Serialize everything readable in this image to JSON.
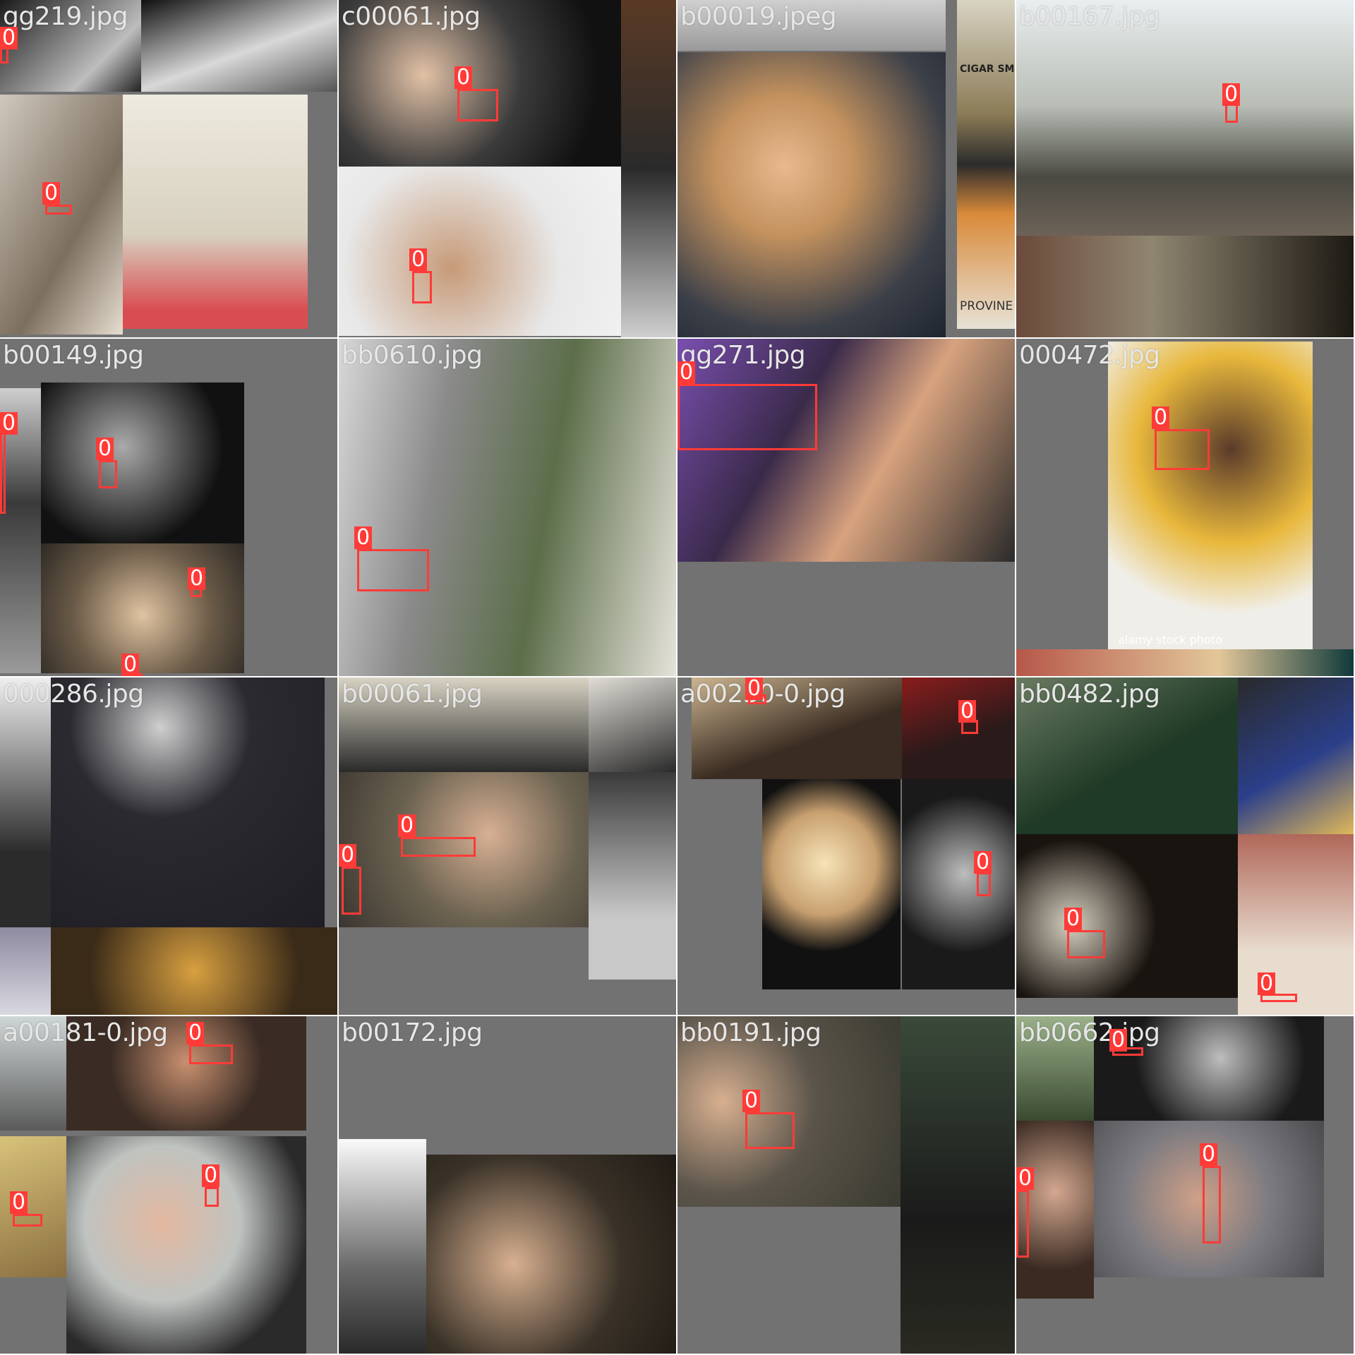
{
  "colors": {
    "background": "#727272",
    "box": "#ff3b38",
    "label_text": "#ffffff",
    "filename_text": "#e6e6e6"
  },
  "tiles": [
    {
      "filename": "gg219.jpg",
      "boxes": [
        {
          "cls": "0"
        },
        {
          "cls": "0"
        }
      ]
    },
    {
      "filename": "c00061.jpg",
      "boxes": [
        {
          "cls": "0"
        },
        {
          "cls": "0"
        }
      ]
    },
    {
      "filename": "b00019.jpeg",
      "poster_top": "CIGAR SMOK",
      "poster_bottom": "PROVINE - H",
      "boxes": []
    },
    {
      "filename": "b00167.jpg",
      "boxes": [
        {
          "cls": "0"
        }
      ]
    },
    {
      "filename": "b00149.jpg",
      "boxes": [
        {
          "cls": "0"
        },
        {
          "cls": "0"
        },
        {
          "cls": "0"
        },
        {
          "cls": "0"
        }
      ]
    },
    {
      "filename": "bb0610.jpg",
      "boxes": [
        {
          "cls": "0"
        }
      ]
    },
    {
      "filename": "gg271.jpg",
      "boxes": [
        {
          "cls": "0"
        }
      ]
    },
    {
      "filename": "000472.jpg",
      "watermark": "alamy stock photo",
      "boxes": [
        {
          "cls": "0"
        }
      ]
    },
    {
      "filename": "000286.jpg",
      "boxes": []
    },
    {
      "filename": "b00061.jpg",
      "boxes": [
        {
          "cls": "0"
        },
        {
          "cls": "0"
        }
      ]
    },
    {
      "filename": "a00230-0.jpg",
      "boxes": [
        {
          "cls": "0"
        },
        {
          "cls": "0"
        },
        {
          "cls": "0"
        }
      ]
    },
    {
      "filename": "bb0482.jpg",
      "boxes": [
        {
          "cls": "0"
        },
        {
          "cls": "0"
        }
      ]
    },
    {
      "filename": "a00181-0.jpg",
      "boxes": [
        {
          "cls": "0"
        },
        {
          "cls": "0"
        },
        {
          "cls": "0"
        }
      ]
    },
    {
      "filename": "b00172.jpg",
      "boxes": []
    },
    {
      "filename": "bb0191.jpg",
      "boxes": [
        {
          "cls": "0"
        }
      ]
    },
    {
      "filename": "bb0662.jpg",
      "boxes": [
        {
          "cls": "0"
        },
        {
          "cls": "0"
        },
        {
          "cls": "0"
        }
      ]
    }
  ]
}
